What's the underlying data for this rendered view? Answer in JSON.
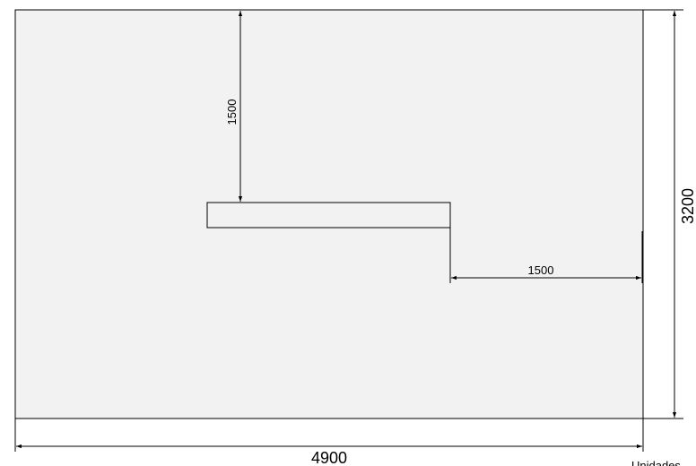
{
  "drawing": {
    "units_note": "Unidades",
    "dimensions": {
      "room_width": "4900",
      "room_height": "3200",
      "object_to_top_wall": "1500",
      "object_to_right_wall": "1500"
    },
    "colors": {
      "room_fill": "#f2f2f2",
      "line": "#000000",
      "background": "#ffffff"
    }
  }
}
